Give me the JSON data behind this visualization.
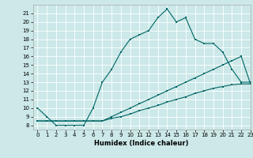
{
  "xlabel": "Humidex (Indice chaleur)",
  "ylabel": "",
  "bg_color": "#cce8e8",
  "grid_color": "#ffffff",
  "line_color": "#006666",
  "xlim": [
    -0.5,
    23
  ],
  "ylim": [
    7.5,
    22
  ],
  "yticks": [
    8,
    9,
    10,
    11,
    12,
    13,
    14,
    15,
    16,
    17,
    18,
    19,
    20,
    21
  ],
  "xticks": [
    0,
    1,
    2,
    3,
    4,
    5,
    6,
    7,
    8,
    9,
    10,
    11,
    12,
    13,
    14,
    15,
    16,
    17,
    18,
    19,
    20,
    21,
    22,
    23
  ],
  "line1_x": [
    0,
    1,
    2,
    3,
    4,
    5,
    6,
    7,
    8,
    9,
    10,
    11,
    12,
    13,
    14,
    15,
    16,
    17,
    18,
    19,
    20,
    21,
    22,
    23
  ],
  "line1_y": [
    10,
    9,
    8,
    8,
    8,
    8,
    10,
    13,
    14.5,
    16.5,
    18,
    18.5,
    19,
    20.5,
    21.5,
    20,
    20.5,
    18,
    17.5,
    17.5,
    16.5,
    14.5,
    13,
    13
  ],
  "line2_x": [
    0,
    1,
    2,
    3,
    4,
    5,
    6,
    7,
    8,
    9,
    10,
    11,
    12,
    13,
    14,
    15,
    16,
    17,
    18,
    19,
    20,
    21,
    22,
    23
  ],
  "line2_y": [
    8.5,
    8.5,
    8.5,
    8.5,
    8.5,
    8.5,
    8.5,
    8.5,
    9.0,
    9.5,
    10.0,
    10.5,
    11.0,
    11.5,
    12.0,
    12.5,
    13.0,
    13.5,
    14.0,
    14.5,
    15.0,
    15.5,
    16.0,
    12.8
  ],
  "line3_x": [
    0,
    1,
    2,
    3,
    4,
    5,
    6,
    7,
    8,
    9,
    10,
    11,
    12,
    13,
    14,
    15,
    16,
    17,
    18,
    19,
    20,
    21,
    22,
    23
  ],
  "line3_y": [
    8.5,
    8.5,
    8.5,
    8.5,
    8.5,
    8.5,
    8.5,
    8.5,
    8.8,
    9.0,
    9.3,
    9.7,
    10.0,
    10.3,
    10.7,
    11.0,
    11.3,
    11.7,
    12.0,
    12.3,
    12.5,
    12.7,
    12.8,
    12.8
  ],
  "marker_size": 2.0,
  "line_width": 0.8,
  "tick_fontsize": 5,
  "xlabel_fontsize": 6
}
